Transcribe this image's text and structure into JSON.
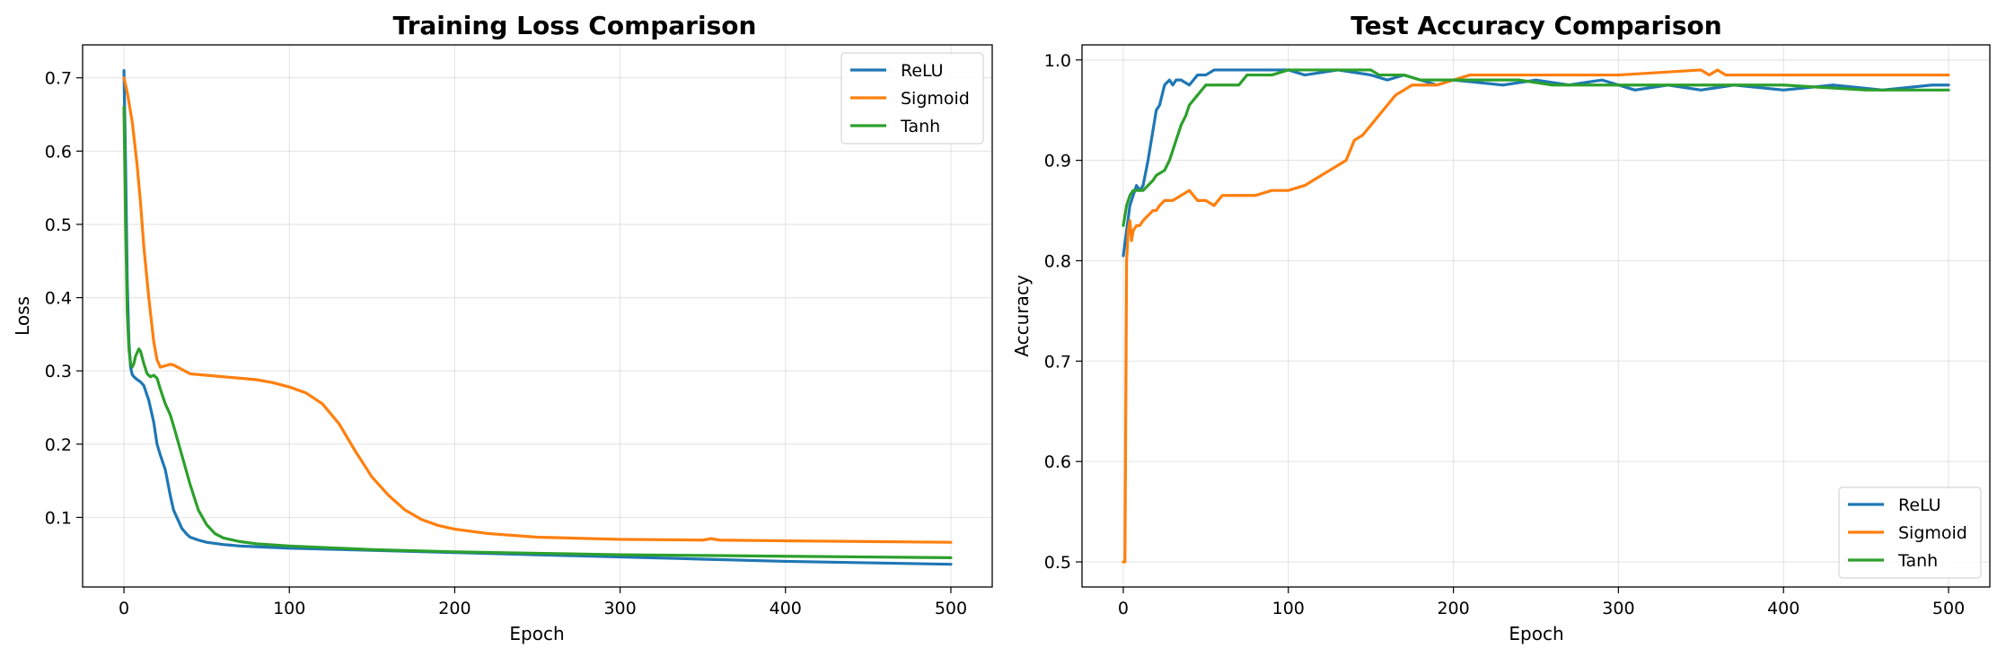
{
  "chart_data": [
    {
      "type": "line",
      "title": "Training Loss Comparison",
      "xlabel": "Epoch",
      "ylabel": "Loss",
      "xlim": [
        -25,
        525
      ],
      "ylim": [
        0.005,
        0.745
      ],
      "xticks": [
        0,
        100,
        200,
        300,
        400,
        500
      ],
      "yticks": [
        0.1,
        0.2,
        0.3,
        0.4,
        0.5,
        0.6,
        0.7
      ],
      "tick_decimals": 1,
      "grid": true,
      "legend": "top-right",
      "series": [
        {
          "name": "ReLU",
          "color": "#1f77b4",
          "x": [
            0,
            1,
            2,
            3,
            4,
            5,
            6,
            8,
            10,
            12,
            15,
            18,
            20,
            22,
            25,
            28,
            30,
            33,
            35,
            38,
            40,
            45,
            50,
            60,
            70,
            80,
            100,
            150,
            200,
            250,
            300,
            350,
            400,
            450,
            500
          ],
          "y": [
            0.71,
            0.58,
            0.42,
            0.34,
            0.305,
            0.295,
            0.292,
            0.288,
            0.285,
            0.28,
            0.26,
            0.23,
            0.2,
            0.185,
            0.165,
            0.13,
            0.11,
            0.095,
            0.085,
            0.077,
            0.073,
            0.069,
            0.066,
            0.063,
            0.061,
            0.06,
            0.058,
            0.055,
            0.052,
            0.049,
            0.046,
            0.043,
            0.04,
            0.038,
            0.036
          ]
        },
        {
          "name": "Sigmoid",
          "color": "#ff7f0e",
          "x": [
            0,
            2,
            5,
            8,
            10,
            12,
            15,
            18,
            20,
            22,
            25,
            28,
            30,
            35,
            40,
            45,
            50,
            60,
            70,
            80,
            90,
            100,
            110,
            120,
            130,
            140,
            150,
            160,
            170,
            180,
            190,
            200,
            220,
            250,
            300,
            350,
            355,
            360,
            400,
            450,
            500
          ],
          "y": [
            0.7,
            0.68,
            0.64,
            0.58,
            0.53,
            0.47,
            0.4,
            0.34,
            0.315,
            0.305,
            0.307,
            0.309,
            0.308,
            0.302,
            0.296,
            0.295,
            0.294,
            0.292,
            0.29,
            0.288,
            0.284,
            0.278,
            0.27,
            0.255,
            0.228,
            0.19,
            0.155,
            0.13,
            0.11,
            0.097,
            0.089,
            0.084,
            0.078,
            0.073,
            0.07,
            0.069,
            0.071,
            0.069,
            0.068,
            0.067,
            0.066
          ]
        },
        {
          "name": "Tanh",
          "color": "#2ca02c",
          "x": [
            0,
            1,
            2,
            3,
            4,
            5,
            6,
            7,
            8,
            9,
            10,
            12,
            14,
            16,
            18,
            20,
            22,
            25,
            28,
            30,
            35,
            40,
            45,
            50,
            55,
            60,
            70,
            80,
            100,
            150,
            200,
            250,
            300,
            350,
            400,
            450,
            500
          ],
          "y": [
            0.66,
            0.5,
            0.38,
            0.33,
            0.31,
            0.305,
            0.31,
            0.32,
            0.325,
            0.33,
            0.327,
            0.31,
            0.296,
            0.292,
            0.294,
            0.29,
            0.275,
            0.255,
            0.24,
            0.225,
            0.185,
            0.145,
            0.11,
            0.09,
            0.078,
            0.072,
            0.067,
            0.064,
            0.061,
            0.056,
            0.053,
            0.051,
            0.049,
            0.048,
            0.047,
            0.046,
            0.045
          ]
        }
      ]
    },
    {
      "type": "line",
      "title": "Test Accuracy Comparison",
      "xlabel": "Epoch",
      "ylabel": "Accuracy",
      "xlim": [
        -25,
        525
      ],
      "ylim": [
        0.475,
        1.015
      ],
      "xticks": [
        0,
        100,
        200,
        300,
        400,
        500
      ],
      "yticks": [
        0.5,
        0.6,
        0.7,
        0.8,
        0.9,
        1.0
      ],
      "tick_decimals": 1,
      "grid": true,
      "legend": "bottom-right",
      "series": [
        {
          "name": "ReLU",
          "color": "#1f77b4",
          "x": [
            0,
            2,
            4,
            6,
            8,
            10,
            12,
            15,
            18,
            20,
            22,
            25,
            28,
            30,
            32,
            35,
            40,
            45,
            50,
            55,
            60,
            80,
            100,
            110,
            130,
            150,
            160,
            170,
            180,
            190,
            200,
            230,
            250,
            270,
            290,
            310,
            330,
            350,
            370,
            400,
            430,
            460,
            490,
            500
          ],
          "y": [
            0.805,
            0.83,
            0.855,
            0.865,
            0.875,
            0.87,
            0.875,
            0.9,
            0.93,
            0.95,
            0.955,
            0.975,
            0.98,
            0.975,
            0.98,
            0.98,
            0.975,
            0.985,
            0.985,
            0.99,
            0.99,
            0.99,
            0.99,
            0.985,
            0.99,
            0.985,
            0.98,
            0.985,
            0.98,
            0.975,
            0.98,
            0.975,
            0.98,
            0.975,
            0.98,
            0.97,
            0.975,
            0.97,
            0.975,
            0.97,
            0.975,
            0.97,
            0.975,
            0.975
          ]
        },
        {
          "name": "Sigmoid",
          "color": "#ff7f0e",
          "x": [
            0,
            1,
            2,
            3,
            4,
            5,
            6,
            8,
            10,
            12,
            15,
            18,
            20,
            22,
            25,
            28,
            30,
            35,
            40,
            45,
            50,
            55,
            60,
            70,
            80,
            90,
            100,
            110,
            115,
            120,
            125,
            130,
            135,
            140,
            145,
            150,
            155,
            160,
            165,
            170,
            175,
            180,
            190,
            200,
            210,
            230,
            260,
            300,
            350,
            355,
            360,
            365,
            370,
            400,
            450,
            500
          ],
          "y": [
            0.5,
            0.5,
            0.8,
            0.83,
            0.84,
            0.82,
            0.83,
            0.835,
            0.835,
            0.84,
            0.845,
            0.85,
            0.85,
            0.855,
            0.86,
            0.86,
            0.86,
            0.865,
            0.87,
            0.86,
            0.86,
            0.855,
            0.865,
            0.865,
            0.865,
            0.87,
            0.87,
            0.875,
            0.88,
            0.885,
            0.89,
            0.895,
            0.9,
            0.92,
            0.925,
            0.935,
            0.945,
            0.955,
            0.965,
            0.97,
            0.975,
            0.975,
            0.975,
            0.98,
            0.985,
            0.985,
            0.985,
            0.985,
            0.99,
            0.985,
            0.99,
            0.985,
            0.985,
            0.985,
            0.985,
            0.985
          ]
        },
        {
          "name": "Tanh",
          "color": "#2ca02c",
          "x": [
            0,
            2,
            4,
            6,
            8,
            10,
            12,
            15,
            18,
            20,
            25,
            28,
            30,
            33,
            35,
            38,
            40,
            45,
            50,
            55,
            60,
            70,
            75,
            80,
            90,
            100,
            120,
            140,
            150,
            155,
            170,
            180,
            200,
            220,
            240,
            260,
            280,
            300,
            350,
            400,
            450,
            500
          ],
          "y": [
            0.835,
            0.855,
            0.865,
            0.87,
            0.87,
            0.87,
            0.87,
            0.875,
            0.88,
            0.885,
            0.89,
            0.9,
            0.91,
            0.925,
            0.935,
            0.945,
            0.955,
            0.965,
            0.975,
            0.975,
            0.975,
            0.975,
            0.985,
            0.985,
            0.985,
            0.99,
            0.99,
            0.99,
            0.99,
            0.985,
            0.985,
            0.98,
            0.98,
            0.98,
            0.98,
            0.975,
            0.975,
            0.975,
            0.975,
            0.975,
            0.97,
            0.97
          ]
        }
      ]
    }
  ]
}
